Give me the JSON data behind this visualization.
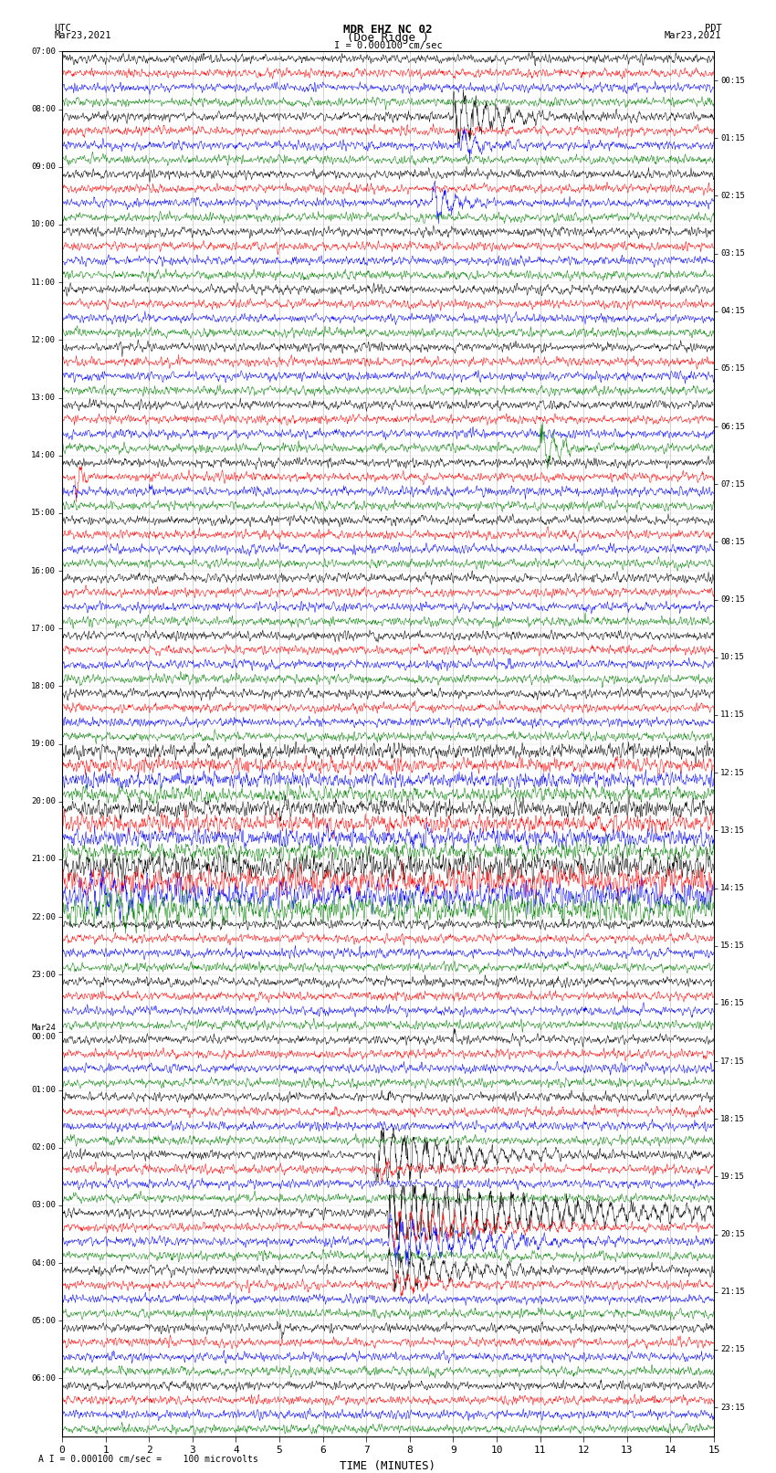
{
  "title_line1": "MDR EHZ NC 02",
  "title_line2": "(Doe Ridge )",
  "scale_label": "I = 0.000100 cm/sec",
  "footer_label": "A I = 0.000100 cm/sec =    100 microvolts",
  "utc_label": "UTC\nMar23,2021",
  "pdt_label": "PDT\nMar23,2021",
  "xlabel": "TIME (MINUTES)",
  "left_times": [
    "07:00",
    "08:00",
    "09:00",
    "10:00",
    "11:00",
    "12:00",
    "13:00",
    "14:00",
    "15:00",
    "16:00",
    "17:00",
    "18:00",
    "19:00",
    "20:00",
    "21:00",
    "22:00",
    "23:00",
    "Mar24\n00:00",
    "01:00",
    "02:00",
    "03:00",
    "04:00",
    "05:00",
    "06:00"
  ],
  "right_times": [
    "00:15",
    "01:15",
    "02:15",
    "03:15",
    "04:15",
    "05:15",
    "06:15",
    "07:15",
    "08:15",
    "09:15",
    "10:15",
    "11:15",
    "12:15",
    "13:15",
    "14:15",
    "15:15",
    "16:15",
    "17:15",
    "18:15",
    "19:15",
    "20:15",
    "21:15",
    "22:15",
    "23:15"
  ],
  "n_rows": 24,
  "colors": [
    "black",
    "red",
    "blue",
    "green"
  ],
  "bg_color": "white",
  "grid_color": "#aaaaaa",
  "noise_base": 0.06,
  "minutes": 15,
  "figsize": [
    8.5,
    16.13
  ],
  "dpi": 100
}
